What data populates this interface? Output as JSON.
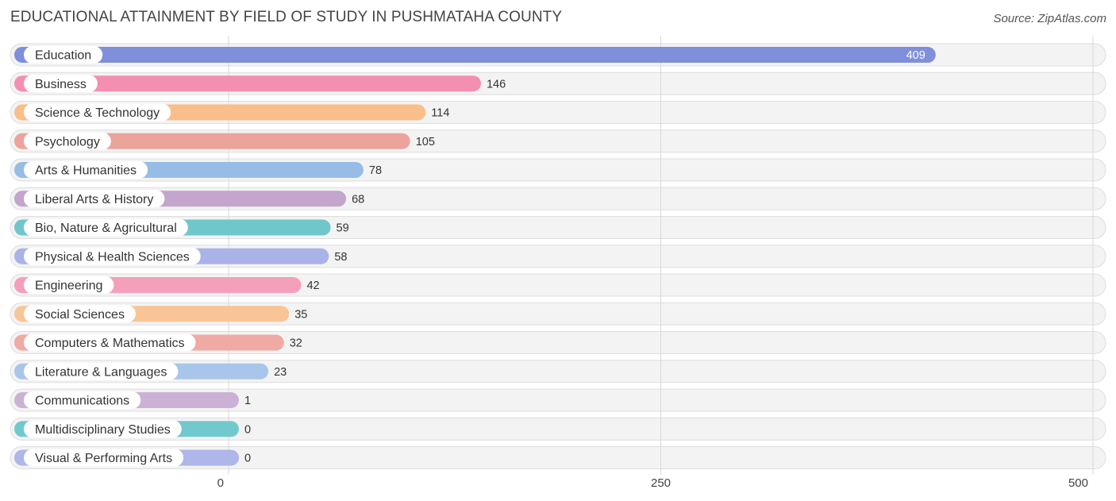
{
  "header": {
    "title": "EDUCATIONAL ATTAINMENT BY FIELD OF STUDY IN PUSHMATAHA COUNTY",
    "source": "Source: ZipAtlas.com"
  },
  "chart_data": {
    "type": "bar",
    "orientation": "horizontal",
    "title": "EDUCATIONAL ATTAINMENT BY FIELD OF STUDY IN PUSHMATAHA COUNTY",
    "xlabel": "",
    "ylabel": "",
    "xlim": [
      0,
      500
    ],
    "ticks": [
      0,
      250,
      500
    ],
    "tick_labels": [
      "0",
      "250",
      "500"
    ],
    "grid": true,
    "categories": [
      "Education",
      "Business",
      "Science & Technology",
      "Psychology",
      "Arts & Humanities",
      "Liberal Arts & History",
      "Bio, Nature & Agricultural",
      "Physical & Health Sciences",
      "Engineering",
      "Social Sciences",
      "Computers & Mathematics",
      "Literature & Languages",
      "Communications",
      "Multidisciplinary Studies",
      "Visual & Performing Arts"
    ],
    "values": [
      409,
      146,
      114,
      105,
      78,
      68,
      59,
      58,
      42,
      35,
      32,
      23,
      1,
      0,
      0
    ],
    "value_labels": [
      "409",
      "146",
      "114",
      "105",
      "78",
      "68",
      "59",
      "58",
      "42",
      "35",
      "32",
      "23",
      "1",
      "0",
      "0"
    ],
    "colors": [
      "#7f8fdc",
      "#f48fb1",
      "#f9be8a",
      "#eba39c",
      "#97bde6",
      "#c4a5cd",
      "#6fc6cb",
      "#aab3e8",
      "#f4a0bb",
      "#f9c596",
      "#efaaa3",
      "#a8c6ea",
      "#ccb1d6",
      "#72c9cd",
      "#aeb6ea"
    ]
  }
}
